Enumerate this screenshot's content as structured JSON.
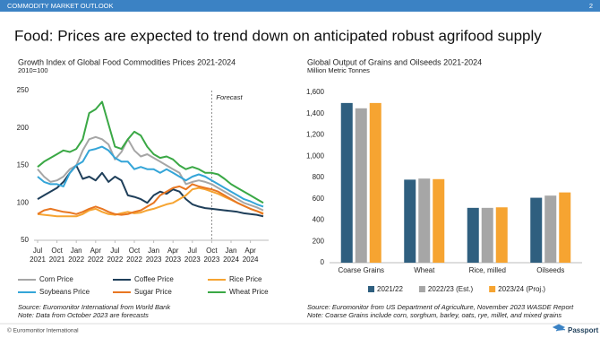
{
  "header": {
    "section": "COMMODITY MARKET OUTLOOK",
    "page": "2"
  },
  "title": "Food: Prices are expected to trend down on anticipated robust agrifood supply",
  "chart_data": [
    {
      "type": "line",
      "title": "Growth Index of Global Food Commodities Prices 2021-2024",
      "subtitle": "2010=100",
      "x": [
        "2021-07",
        "2021-08",
        "2021-09",
        "2021-10",
        "2021-11",
        "2021-12",
        "2022-01",
        "2022-02",
        "2022-03",
        "2022-04",
        "2022-05",
        "2022-06",
        "2022-07",
        "2022-08",
        "2022-09",
        "2022-10",
        "2022-11",
        "2022-12",
        "2023-01",
        "2023-02",
        "2023-03",
        "2023-04",
        "2023-05",
        "2023-06",
        "2023-07",
        "2023-08",
        "2023-09",
        "2023-10",
        "2023-11",
        "2023-12",
        "2024-01",
        "2024-02",
        "2024-03",
        "2024-04",
        "2024-05",
        "2024-06"
      ],
      "xlim": [
        "2021-07",
        "2024-06"
      ],
      "xticks": [
        {
          "value": "2021-07",
          "label": "Jul 2021"
        },
        {
          "value": "2021-10",
          "label": "Oct 2021"
        },
        {
          "value": "2022-01",
          "label": "Jan 2022"
        },
        {
          "value": "2022-04",
          "label": "Apr 2022"
        },
        {
          "value": "2022-07",
          "label": "Jul 2022"
        },
        {
          "value": "2022-10",
          "label": "Oct 2022"
        },
        {
          "value": "2023-01",
          "label": "Jan 2023"
        },
        {
          "value": "2023-04",
          "label": "Apr 2023"
        },
        {
          "value": "2023-07",
          "label": "Jul 2023"
        },
        {
          "value": "2023-10",
          "label": "Oct 2023"
        },
        {
          "value": "2024-01",
          "label": "Jan 2024"
        },
        {
          "value": "2024-04",
          "label": "Apr 2024"
        }
      ],
      "ylim": [
        50,
        250
      ],
      "yticks": [
        50,
        100,
        150,
        200,
        250
      ],
      "grid": false,
      "forecast": {
        "label": "Forecast",
        "start": "2023-10"
      },
      "series": [
        {
          "name": "Corn Price",
          "color": "#a6a6a6",
          "values": [
            145,
            135,
            128,
            130,
            135,
            145,
            150,
            170,
            185,
            188,
            185,
            178,
            158,
            168,
            185,
            170,
            162,
            165,
            160,
            155,
            150,
            145,
            140,
            125,
            128,
            130,
            128,
            125,
            120,
            115,
            110,
            105,
            100,
            97,
            94,
            90
          ]
        },
        {
          "name": "Coffee Price",
          "color": "#1f3f5a",
          "values": [
            105,
            110,
            115,
            120,
            128,
            140,
            150,
            132,
            135,
            130,
            140,
            128,
            135,
            130,
            110,
            108,
            105,
            100,
            110,
            115,
            112,
            118,
            115,
            105,
            98,
            95,
            93,
            92,
            91,
            90,
            89,
            88,
            86,
            85,
            84,
            82
          ]
        },
        {
          "name": "Rice Price",
          "color": "#f6a431",
          "values": [
            85,
            84,
            83,
            82,
            82,
            82,
            82,
            85,
            90,
            92,
            88,
            85,
            84,
            86,
            88,
            86,
            87,
            90,
            92,
            95,
            98,
            100,
            105,
            110,
            118,
            120,
            118,
            115,
            112,
            108,
            104,
            100,
            96,
            92,
            89,
            86
          ]
        },
        {
          "name": "Soybeans Price",
          "color": "#34a5d8",
          "values": [
            135,
            128,
            125,
            125,
            122,
            140,
            150,
            155,
            170,
            172,
            175,
            170,
            160,
            155,
            155,
            145,
            148,
            145,
            145,
            140,
            145,
            140,
            135,
            130,
            135,
            138,
            135,
            130,
            125,
            120,
            115,
            110,
            105,
            102,
            98,
            95
          ]
        },
        {
          "name": "Sugar Price",
          "color": "#e87722",
          "values": [
            85,
            90,
            92,
            90,
            88,
            87,
            85,
            88,
            92,
            95,
            92,
            88,
            85,
            84,
            85,
            88,
            90,
            95,
            100,
            110,
            115,
            120,
            122,
            118,
            125,
            122,
            120,
            118,
            115,
            110,
            105,
            100,
            96,
            92,
            89,
            85
          ]
        },
        {
          "name": "Wheat Price",
          "color": "#3aa845",
          "values": [
            148,
            155,
            160,
            165,
            170,
            168,
            172,
            185,
            220,
            225,
            235,
            205,
            175,
            172,
            185,
            195,
            190,
            175,
            165,
            160,
            162,
            158,
            150,
            145,
            148,
            145,
            140,
            140,
            138,
            132,
            125,
            120,
            115,
            110,
            105,
            100
          ]
        }
      ],
      "source": "Source: Euromonitor International from World Bank",
      "note": "Note: Data from October 2023 are forecasts"
    },
    {
      "type": "bar",
      "title": "Global Output of Grains and Oilseeds 2021-2024",
      "subtitle": "Million Metric Tonnes",
      "categories": [
        "Coarse Grains",
        "Wheat",
        "Rice, milled",
        "Oilseeds"
      ],
      "ylim": [
        0,
        1600
      ],
      "yticks": [
        0,
        200,
        400,
        600,
        800,
        {
          "value": 1000,
          "label": "1,000"
        },
        {
          "value": 1200,
          "label": "1,200"
        },
        {
          "value": 1400,
          "label": "1,400"
        },
        {
          "value": 1600,
          "label": "1,600"
        }
      ],
      "grid": false,
      "series": [
        {
          "name": "2021/22",
          "color": "#2f5f7f",
          "values": [
            1500,
            780,
            515,
            610
          ]
        },
        {
          "name": "2022/23 (Est.)",
          "color": "#a6a6a6",
          "values": [
            1450,
            790,
            515,
            630
          ]
        },
        {
          "name": "2023/24 (Proj.)",
          "color": "#f6a431",
          "values": [
            1500,
            785,
            520,
            660
          ]
        }
      ],
      "source": "Source: Euromonitor from US Department of Agriculture, November 2023 WASDE Report",
      "note": "Note: Coarse Grains include corn, sorghum, barley, oats, rye, millet, and mixed grains"
    }
  ],
  "footer": {
    "copyright": "© Euromonitor International",
    "brand": "Passport"
  }
}
